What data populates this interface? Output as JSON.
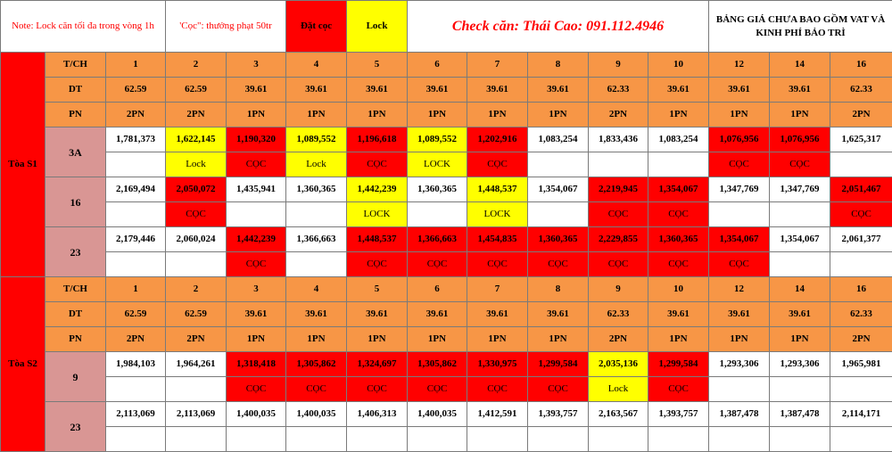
{
  "header": {
    "note": "Note: Lock căn tối đa trong vòng 1h",
    "coc_rule": "'Cọc\": thưởng phạt 50tr",
    "dat_coc": "Đặt cọc",
    "lock": "Lock",
    "check": "Check căn: Thái Cao: 091.112.4946",
    "price_note": "BẢNG GIÁ CHƯA BAO GỒM VAT VÀ KINH PHÍ BẢO TRÌ"
  },
  "colors": {
    "sold": "#ff0000",
    "locked": "#ffff00",
    "header": "#f79646",
    "tower": "#d99694"
  },
  "towers": [
    {
      "name": "Tòa S1",
      "labels": {
        "tch": "T/CH",
        "dt": "DT",
        "pn": "PN"
      },
      "units": [
        "1",
        "2",
        "3",
        "4",
        "5",
        "6",
        "7",
        "8",
        "9",
        "10",
        "12",
        "14",
        "16"
      ],
      "areas": [
        "62.59",
        "62.59",
        "39.61",
        "39.61",
        "39.61",
        "39.61",
        "39.61",
        "39.61",
        "62.33",
        "39.61",
        "39.61",
        "39.61",
        "62.33"
      ],
      "rooms": [
        "2PN",
        "2PN",
        "1PN",
        "1PN",
        "1PN",
        "1PN",
        "1PN",
        "1PN",
        "2PN",
        "1PN",
        "1PN",
        "1PN",
        "2PN"
      ],
      "floors": [
        {
          "floor": "3A",
          "prices": [
            "1,781,373",
            "1,622,145",
            "1,190,320",
            "1,089,552",
            "1,196,618",
            "1,089,552",
            "1,202,916",
            "1,083,254",
            "1,833,436",
            "1,083,254",
            "1,076,956",
            "1,076,956",
            "1,625,317"
          ],
          "states": [
            "",
            "lock",
            "coc",
            "lock",
            "coc",
            "lock",
            "coc",
            "",
            "",
            "",
            "coc",
            "coc",
            ""
          ],
          "status": [
            "",
            "Lock",
            "CỌC",
            "Lock",
            "CỌC",
            "LOCK",
            "CỌC",
            "",
            "",
            "",
            "CỌC",
            "CỌC",
            ""
          ]
        },
        {
          "floor": "16",
          "prices": [
            "2,169,494",
            "2,050,072",
            "1,435,941",
            "1,360,365",
            "1,442,239",
            "1,360,365",
            "1,448,537",
            "1,354,067",
            "2,219,945",
            "1,354,067",
            "1,347,769",
            "1,347,769",
            "2,051,467"
          ],
          "states": [
            "",
            "coc",
            "",
            "",
            "lock",
            "",
            "lock",
            "",
            "coc",
            "coc",
            "",
            "",
            "coc"
          ],
          "status": [
            "",
            "CỌC",
            "",
            "",
            "LOCK",
            "",
            "LOCK",
            "",
            "CỌC",
            "CỌC",
            "",
            "",
            "CỌC"
          ]
        },
        {
          "floor": "23",
          "prices": [
            "2,179,446",
            "2,060,024",
            "1,442,239",
            "1,366,663",
            "1,448,537",
            "1,366,663",
            "1,454,835",
            "1,360,365",
            "2,229,855",
            "1,360,365",
            "1,354,067",
            "1,354,067",
            "2,061,377"
          ],
          "states": [
            "",
            "",
            "coc",
            "",
            "coc",
            "coc",
            "coc",
            "coc",
            "coc",
            "coc",
            "coc",
            "",
            ""
          ],
          "status": [
            "",
            "",
            "CỌC",
            "",
            "CỌC",
            "CỌC",
            "CỌC",
            "CỌC",
            "CỌC",
            "CỌC",
            "CỌC",
            "",
            ""
          ]
        }
      ]
    },
    {
      "name": "Tòa S2",
      "labels": {
        "tch": "T/CH",
        "dt": "DT",
        "pn": "PN"
      },
      "units": [
        "1",
        "2",
        "3",
        "4",
        "5",
        "6",
        "7",
        "8",
        "9",
        "10",
        "12",
        "14",
        "16"
      ],
      "areas": [
        "62.59",
        "62.59",
        "39.61",
        "39.61",
        "39.61",
        "39.61",
        "39.61",
        "39.61",
        "62.33",
        "39.61",
        "39.61",
        "39.61",
        "62.33"
      ],
      "rooms": [
        "2PN",
        "2PN",
        "1PN",
        "1PN",
        "1PN",
        "1PN",
        "1PN",
        "1PN",
        "2PN",
        "1PN",
        "1PN",
        "1PN",
        "2PN"
      ],
      "floors": [
        {
          "floor": "9",
          "prices": [
            "1,984,103",
            "1,964,261",
            "1,318,418",
            "1,305,862",
            "1,324,697",
            "1,305,862",
            "1,330,975",
            "1,299,584",
            "2,035,136",
            "1,299,584",
            "1,293,306",
            "1,293,306",
            "1,965,981"
          ],
          "states": [
            "",
            "",
            "coc",
            "coc",
            "coc",
            "coc",
            "coc",
            "coc",
            "lock",
            "coc",
            "",
            "",
            ""
          ],
          "status": [
            "",
            "",
            "CỌC",
            "CỌC",
            "CỌC",
            "CỌC",
            "CỌC",
            "CỌC",
            "Lock",
            "CỌC",
            "",
            "",
            ""
          ]
        },
        {
          "floor": "23",
          "prices": [
            "2,113,069",
            "2,113,069",
            "1,400,035",
            "1,400,035",
            "1,406,313",
            "1,400,035",
            "1,412,591",
            "1,393,757",
            "2,163,567",
            "1,393,757",
            "1,387,478",
            "1,387,478",
            "2,114,171"
          ],
          "states": [
            "",
            "",
            "",
            "",
            "",
            "",
            "",
            "",
            "",
            "",
            "",
            "",
            ""
          ],
          "status": [
            "",
            "",
            "",
            "",
            "",
            "",
            "",
            "",
            "",
            "",
            "",
            "",
            ""
          ]
        }
      ]
    }
  ]
}
